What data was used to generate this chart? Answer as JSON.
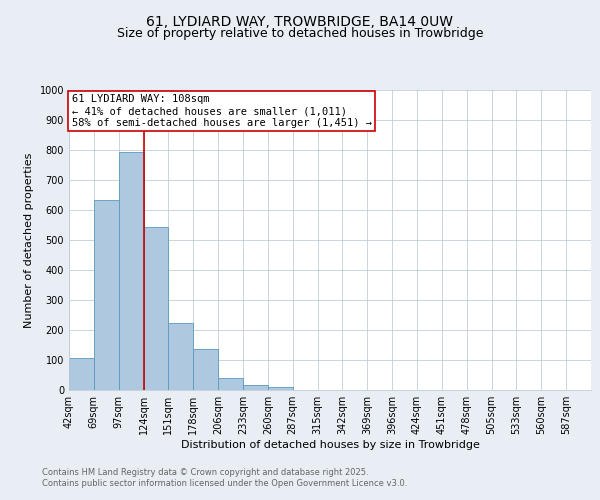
{
  "title": "61, LYDIARD WAY, TROWBRIDGE, BA14 0UW",
  "subtitle": "Size of property relative to detached houses in Trowbridge",
  "xlabel": "Distribution of detached houses by size in Trowbridge",
  "ylabel": "Number of detached properties",
  "bar_values": [
    107,
    632,
    793,
    543,
    222,
    136,
    41,
    17,
    9,
    0,
    0,
    0,
    0,
    0,
    0,
    0,
    0,
    0,
    0,
    0,
    0
  ],
  "bin_labels": [
    "42sqm",
    "69sqm",
    "97sqm",
    "124sqm",
    "151sqm",
    "178sqm",
    "206sqm",
    "233sqm",
    "260sqm",
    "287sqm",
    "315sqm",
    "342sqm",
    "369sqm",
    "396sqm",
    "424sqm",
    "451sqm",
    "478sqm",
    "505sqm",
    "533sqm",
    "560sqm",
    "587sqm"
  ],
  "bar_color": "#aec8e0",
  "bar_edge_color": "#5a9abe",
  "vline_color": "#cc0000",
  "annotation_text": "61 LYDIARD WAY: 108sqm\n← 41% of detached houses are smaller (1,011)\n58% of semi-detached houses are larger (1,451) →",
  "annotation_box_color": "#ffffff",
  "annotation_box_edge": "#cc0000",
  "ylim": [
    0,
    1000
  ],
  "yticks": [
    0,
    100,
    200,
    300,
    400,
    500,
    600,
    700,
    800,
    900,
    1000
  ],
  "bg_color": "#e8eef4",
  "plot_bg_color": "#ffffff",
  "grid_color": "#c0cdd8",
  "footer_text": "Contains HM Land Registry data © Crown copyright and database right 2025.\nContains public sector information licensed under the Open Government Licence v3.0.",
  "title_fontsize": 10,
  "subtitle_fontsize": 9,
  "axis_label_fontsize": 8,
  "tick_fontsize": 7,
  "annotation_fontsize": 7.5,
  "footer_fontsize": 6
}
